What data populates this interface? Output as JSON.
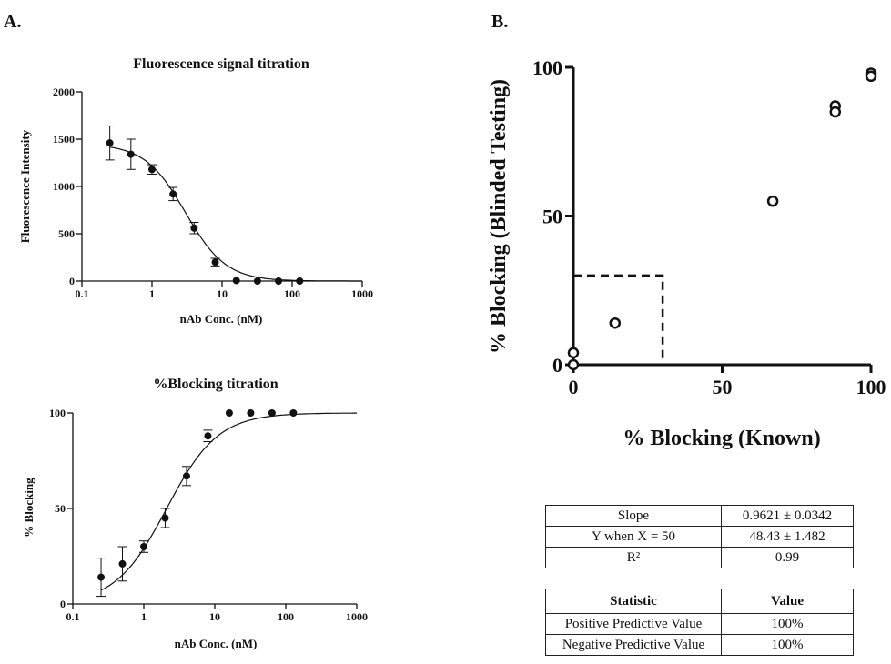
{
  "panel_a_label": "A.",
  "panel_b_label": "B.",
  "chart_data": [
    {
      "type": "scatter",
      "title": "Fluorescence signal titration",
      "xlabel": "nAb Conc. (nM)",
      "ylabel": "Fluorescence Intensity",
      "xscale": "log",
      "xlim": [
        0.1,
        1000
      ],
      "ylim": [
        0,
        2000
      ],
      "xticks": [
        0.1,
        1,
        10,
        100,
        1000
      ],
      "xtick_labels": [
        "0.1",
        "1",
        "10",
        "100",
        "1000"
      ],
      "yticks": [
        0,
        500,
        1000,
        1500,
        2000
      ],
      "ytick_labels": [
        "0",
        "500",
        "1000",
        "1500",
        "2000"
      ],
      "series": [
        {
          "x": [
            0.25,
            0.5,
            1,
            2,
            4,
            8,
            16,
            32,
            64,
            128
          ],
          "y": [
            1460,
            1340,
            1180,
            920,
            560,
            200,
            5,
            0,
            0,
            0
          ],
          "error": [
            180,
            160,
            50,
            70,
            60,
            40,
            0,
            0,
            0,
            0
          ]
        }
      ],
      "fit": {
        "type": "4PL",
        "top": 1450,
        "bottom": 0,
        "ec50": 3.0,
        "hill": 1.5
      }
    },
    {
      "type": "scatter",
      "title": "%Blocking titration",
      "xlabel": "nAb Conc. (nM)",
      "ylabel": "% Blocking",
      "xscale": "log",
      "xlim": [
        0.1,
        1000
      ],
      "ylim": [
        0,
        100
      ],
      "xticks": [
        0.1,
        1,
        10,
        100,
        1000
      ],
      "xtick_labels": [
        "0.1",
        "1",
        "10",
        "100",
        "1000"
      ],
      "yticks": [
        0,
        50,
        100
      ],
      "ytick_labels": [
        "0",
        "50",
        "100"
      ],
      "series": [
        {
          "x": [
            0.25,
            0.5,
            1,
            2,
            4,
            8,
            16,
            32,
            64,
            128
          ],
          "y": [
            14,
            21,
            30,
            45,
            67,
            88,
            100,
            100,
            100,
            100
          ],
          "error": [
            10,
            9,
            3,
            5,
            5,
            3,
            0,
            0,
            0,
            0
          ]
        }
      ],
      "fit": {
        "type": "4PL",
        "top": 100,
        "bottom": 0,
        "ec50": 2.1,
        "hill": 1.2
      }
    },
    {
      "type": "scatter",
      "xlabel": "% Blocking (Known)",
      "ylabel": "% Blocking (Blinded Testing)",
      "xlim": [
        0,
        100
      ],
      "ylim": [
        0,
        100
      ],
      "xticks": [
        0,
        50,
        100
      ],
      "xtick_labels": [
        "0",
        "50",
        "100"
      ],
      "yticks": [
        0,
        50,
        100
      ],
      "ytick_labels": [
        "0",
        "50",
        "100"
      ],
      "series": [
        {
          "x": [
            0,
            0,
            14,
            67,
            88,
            88,
            100,
            100
          ],
          "y": [
            4,
            0,
            14,
            55,
            87,
            85,
            98,
            97
          ]
        }
      ],
      "cutoff_box": {
        "x": 30,
        "y": 30,
        "style": "dashed"
      }
    }
  ],
  "fit_table": {
    "rows": [
      {
        "label": "Slope",
        "value": "0.9621 ± 0.0342"
      },
      {
        "label": "Y when X = 50",
        "value": "48.43 ± 1.482"
      },
      {
        "label": "R²",
        "value": "0.99"
      }
    ]
  },
  "stat_table": {
    "header": {
      "label": "Statistic",
      "value": "Value"
    },
    "rows": [
      {
        "label": "Positive Predictive Value",
        "value": "100%"
      },
      {
        "label": "Negative Predictive Value",
        "value": "100%"
      }
    ]
  }
}
